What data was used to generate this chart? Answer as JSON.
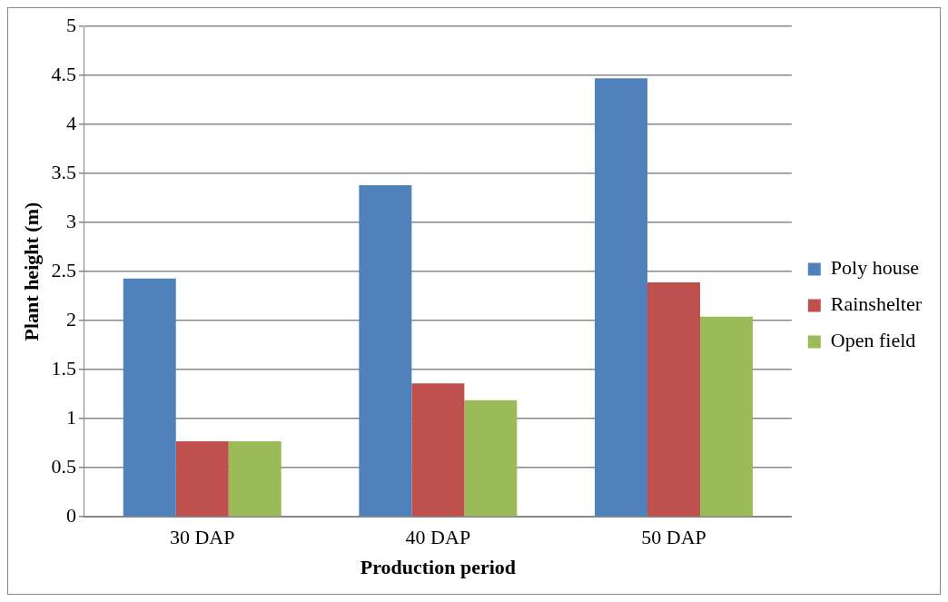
{
  "chart_data": {
    "type": "bar",
    "xlabel": "Production period",
    "ylabel": "Plant height (m)",
    "categories": [
      "30 DAP",
      "40 DAP",
      "50 DAP"
    ],
    "series": [
      {
        "name": "Poly house",
        "color": "#4f81bd",
        "values": [
          2.43,
          3.38,
          4.47
        ]
      },
      {
        "name": "Rainshelter",
        "color": "#c0504d",
        "values": [
          0.77,
          1.36,
          2.39
        ]
      },
      {
        "name": "Open field",
        "color": "#9bbb59",
        "values": [
          0.77,
          1.19,
          2.04
        ]
      }
    ],
    "ylim": [
      0,
      5
    ],
    "yticks": [
      0,
      0.5,
      1,
      1.5,
      2,
      2.5,
      3,
      3.5,
      4,
      4.5,
      5
    ],
    "grid": "y",
    "legend": "right"
  }
}
